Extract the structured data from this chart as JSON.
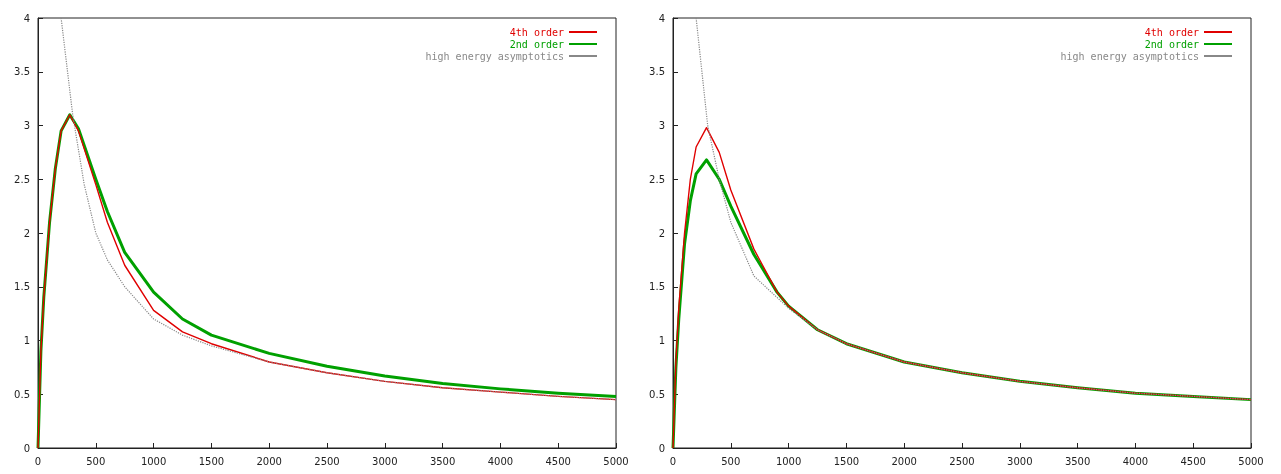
{
  "chart_data": [
    {
      "type": "line",
      "xlim": [
        0,
        5000
      ],
      "xticks": [
        0,
        500,
        1000,
        1500,
        2000,
        2500,
        3000,
        3500,
        4000,
        4500,
        5000
      ],
      "ylim": [
        0,
        4
      ],
      "yticks": [
        0,
        0.5,
        1,
        1.5,
        2,
        2.5,
        3,
        3.5,
        4
      ],
      "grid": false,
      "legend": "top right",
      "marker": "none",
      "series": [
        {
          "name": "4th order",
          "color": "#e00000",
          "line_style": "solid",
          "x": [
            0,
            25,
            50,
            100,
            150,
            200,
            275,
            350,
            500,
            600,
            750,
            1000,
            1250,
            1500,
            2000,
            2500,
            3000,
            3500,
            4000,
            4500,
            5000
          ],
          "values": [
            0,
            0.9,
            1.4,
            2.1,
            2.6,
            2.95,
            3.1,
            2.95,
            2.45,
            2.1,
            1.7,
            1.28,
            1.08,
            0.97,
            0.8,
            0.7,
            0.62,
            0.56,
            0.52,
            0.48,
            0.45
          ]
        },
        {
          "name": "2nd order",
          "color": "#00a000",
          "line_style": "solid",
          "x": [
            0,
            25,
            50,
            100,
            150,
            200,
            275,
            350,
            500,
            600,
            750,
            1000,
            1250,
            1500,
            2000,
            2500,
            3000,
            3500,
            4000,
            4500,
            5000
          ],
          "values": [
            0,
            0.9,
            1.4,
            2.1,
            2.6,
            2.95,
            3.1,
            2.97,
            2.5,
            2.2,
            1.82,
            1.45,
            1.2,
            1.05,
            0.88,
            0.76,
            0.67,
            0.6,
            0.55,
            0.51,
            0.48
          ]
        },
        {
          "name": "high energy asymptotics",
          "color": "#888888",
          "line_style": "dotted",
          "x": [
            200,
            250,
            300,
            400,
            500,
            600,
            750,
            1000,
            1250,
            1500,
            2000,
            2500,
            3000,
            3500,
            4000,
            4500,
            5000
          ],
          "values": [
            4,
            3.55,
            3.1,
            2.45,
            2.0,
            1.75,
            1.5,
            1.2,
            1.05,
            0.95,
            0.8,
            0.7,
            0.62,
            0.56,
            0.52,
            0.48,
            0.45
          ]
        }
      ]
    },
    {
      "type": "line",
      "xlim": [
        0,
        5000
      ],
      "xticks": [
        0,
        500,
        1000,
        1500,
        2000,
        2500,
        3000,
        3500,
        4000,
        4500,
        5000
      ],
      "ylim": [
        0,
        4
      ],
      "yticks": [
        0,
        0.5,
        1,
        1.5,
        2,
        2.5,
        3,
        3.5,
        4
      ],
      "grid": false,
      "legend": "top right",
      "marker": "none",
      "series": [
        {
          "name": "4th order",
          "color": "#e00000",
          "line_style": "solid",
          "x": [
            0,
            25,
            50,
            100,
            150,
            200,
            290,
            400,
            500,
            700,
            900,
            1000,
            1250,
            1500,
            2000,
            2500,
            3000,
            3500,
            4000,
            4500,
            5000
          ],
          "values": [
            0,
            0.8,
            1.3,
            2.0,
            2.5,
            2.8,
            2.98,
            2.75,
            2.4,
            1.85,
            1.45,
            1.32,
            1.1,
            0.97,
            0.8,
            0.7,
            0.62,
            0.56,
            0.51,
            0.48,
            0.45
          ]
        },
        {
          "name": "2nd order",
          "color": "#00a000",
          "line_style": "solid",
          "x": [
            0,
            25,
            50,
            100,
            150,
            200,
            290,
            400,
            500,
            700,
            900,
            1000,
            1250,
            1500,
            2000,
            2500,
            3000,
            3500,
            4000,
            4500,
            5000
          ],
          "values": [
            0,
            0.75,
            1.2,
            1.9,
            2.3,
            2.55,
            2.68,
            2.5,
            2.25,
            1.8,
            1.45,
            1.32,
            1.1,
            0.97,
            0.8,
            0.7,
            0.62,
            0.56,
            0.51,
            0.48,
            0.45
          ]
        },
        {
          "name": "high energy asymptotics",
          "color": "#888888",
          "line_style": "dotted",
          "x": [
            200,
            250,
            300,
            400,
            500,
            700,
            1000,
            1250,
            1500,
            2000,
            2500,
            3000,
            3500,
            4000,
            4500,
            5000
          ],
          "values": [
            4,
            3.5,
            3.0,
            2.5,
            2.1,
            1.6,
            1.3,
            1.1,
            0.97,
            0.8,
            0.7,
            0.62,
            0.56,
            0.51,
            0.48,
            0.45
          ]
        }
      ]
    }
  ]
}
